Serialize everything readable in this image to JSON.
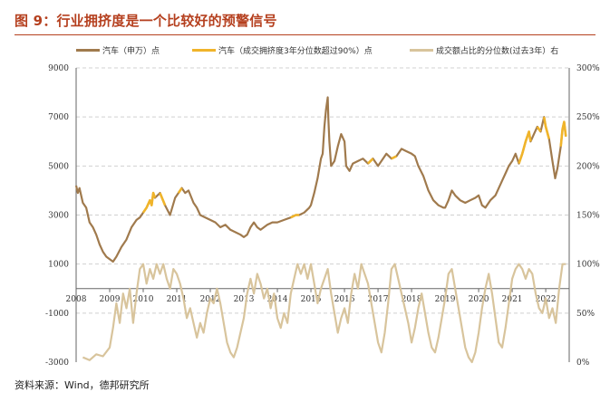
{
  "figure": {
    "title": "图 9：行业拥挤度是一个比较好的预警信号",
    "source": "资料来源：Wind，德邦研究所"
  },
  "chart_data": {
    "type": "line",
    "colors": {
      "price": "#a07a4d",
      "crowded": "#f0b42a",
      "share": "#d8c49c",
      "axis": "#666666",
      "grid": "#d0d0d0"
    },
    "series": [
      {
        "name": "汽车（申万）点",
        "axis": "left",
        "color": "#a07a4d"
      },
      {
        "name": "汽车（成交拥挤度3年分位数超过90%）点",
        "axis": "left",
        "color": "#f0b42a"
      },
      {
        "name": "成交额占比的分位数(过去3年）右",
        "axis": "right",
        "color": "#d8c49c"
      }
    ],
    "x_ticks": [
      "2008",
      "2009",
      "2010",
      "2011",
      "2012",
      "2013",
      "2014",
      "2015",
      "2016",
      "2017",
      "2018",
      "2019",
      "2020",
      "2021",
      "2022"
    ],
    "y_left": {
      "ticks": [
        "9000",
        "7000",
        "5000",
        "3000",
        "1000",
        "-1000",
        "-3000"
      ],
      "ylim": [
        -3000,
        9000
      ]
    },
    "y_right": {
      "ticks": [
        "300%",
        "250%",
        "200%",
        "150%",
        "100%",
        "50%",
        "0%"
      ],
      "ylim": [
        0,
        3
      ]
    },
    "price_points": [
      [
        2008.0,
        4200
      ],
      [
        2008.05,
        3900
      ],
      [
        2008.1,
        4100
      ],
      [
        2008.2,
        3500
      ],
      [
        2008.3,
        3300
      ],
      [
        2008.4,
        2700
      ],
      [
        2008.5,
        2500
      ],
      [
        2008.6,
        2200
      ],
      [
        2008.7,
        1800
      ],
      [
        2008.8,
        1500
      ],
      [
        2008.9,
        1300
      ],
      [
        2009.0,
        1200
      ],
      [
        2009.1,
        1100
      ],
      [
        2009.2,
        1300
      ],
      [
        2009.35,
        1700
      ],
      [
        2009.5,
        2000
      ],
      [
        2009.65,
        2500
      ],
      [
        2009.8,
        2800
      ],
      [
        2009.9,
        2900
      ],
      [
        2010.0,
        3100
      ],
      [
        2010.1,
        3300
      ],
      [
        2010.2,
        3600
      ],
      [
        2010.25,
        3400
      ],
      [
        2010.3,
        3900
      ],
      [
        2010.35,
        3700
      ],
      [
        2010.5,
        3900
      ],
      [
        2010.65,
        3400
      ],
      [
        2010.8,
        3000
      ],
      [
        2010.95,
        3700
      ],
      [
        2011.05,
        3900
      ],
      [
        2011.15,
        4100
      ],
      [
        2011.25,
        3900
      ],
      [
        2011.35,
        4000
      ],
      [
        2011.5,
        3500
      ],
      [
        2011.6,
        3300
      ],
      [
        2011.7,
        3000
      ],
      [
        2011.85,
        2900
      ],
      [
        2012.0,
        2800
      ],
      [
        2012.15,
        2700
      ],
      [
        2012.3,
        2500
      ],
      [
        2012.45,
        2600
      ],
      [
        2012.6,
        2400
      ],
      [
        2012.75,
        2300
      ],
      [
        2012.9,
        2200
      ],
      [
        2013.0,
        2100
      ],
      [
        2013.1,
        2200
      ],
      [
        2013.2,
        2500
      ],
      [
        2013.3,
        2700
      ],
      [
        2013.4,
        2500
      ],
      [
        2013.5,
        2400
      ],
      [
        2013.7,
        2600
      ],
      [
        2013.85,
        2700
      ],
      [
        2014.0,
        2700
      ],
      [
        2014.2,
        2800
      ],
      [
        2014.4,
        2900
      ],
      [
        2014.55,
        3000
      ],
      [
        2014.65,
        3000
      ],
      [
        2014.8,
        3100
      ],
      [
        2014.95,
        3300
      ],
      [
        2015.0,
        3400
      ],
      [
        2015.1,
        3900
      ],
      [
        2015.2,
        4500
      ],
      [
        2015.3,
        5300
      ],
      [
        2015.35,
        5500
      ],
      [
        2015.4,
        6600
      ],
      [
        2015.45,
        7300
      ],
      [
        2015.5,
        7800
      ],
      [
        2015.52,
        6900
      ],
      [
        2015.55,
        6000
      ],
      [
        2015.6,
        5000
      ],
      [
        2015.7,
        5200
      ],
      [
        2015.8,
        5800
      ],
      [
        2015.9,
        6300
      ],
      [
        2016.0,
        6000
      ],
      [
        2016.05,
        5000
      ],
      [
        2016.15,
        4800
      ],
      [
        2016.25,
        5100
      ],
      [
        2016.4,
        5200
      ],
      [
        2016.55,
        5300
      ],
      [
        2016.7,
        5100
      ],
      [
        2016.85,
        5300
      ],
      [
        2017.0,
        5000
      ],
      [
        2017.1,
        5200
      ],
      [
        2017.25,
        5500
      ],
      [
        2017.4,
        5300
      ],
      [
        2017.55,
        5400
      ],
      [
        2017.7,
        5700
      ],
      [
        2017.85,
        5600
      ],
      [
        2018.0,
        5500
      ],
      [
        2018.1,
        5400
      ],
      [
        2018.2,
        5000
      ],
      [
        2018.35,
        4600
      ],
      [
        2018.5,
        4000
      ],
      [
        2018.65,
        3600
      ],
      [
        2018.8,
        3400
      ],
      [
        2018.95,
        3300
      ],
      [
        2019.0,
        3300
      ],
      [
        2019.1,
        3600
      ],
      [
        2019.2,
        4000
      ],
      [
        2019.3,
        3800
      ],
      [
        2019.45,
        3600
      ],
      [
        2019.6,
        3500
      ],
      [
        2019.75,
        3600
      ],
      [
        2019.9,
        3700
      ],
      [
        2020.0,
        3800
      ],
      [
        2020.1,
        3400
      ],
      [
        2020.2,
        3300
      ],
      [
        2020.35,
        3600
      ],
      [
        2020.5,
        3800
      ],
      [
        2020.6,
        4100
      ],
      [
        2020.7,
        4400
      ],
      [
        2020.8,
        4700
      ],
      [
        2020.9,
        5000
      ],
      [
        2021.0,
        5200
      ],
      [
        2021.1,
        5500
      ],
      [
        2021.2,
        5100
      ],
      [
        2021.3,
        5500
      ],
      [
        2021.4,
        6000
      ],
      [
        2021.5,
        6400
      ],
      [
        2021.55,
        6000
      ],
      [
        2021.65,
        6300
      ],
      [
        2021.75,
        6600
      ],
      [
        2021.85,
        6400
      ],
      [
        2021.95,
        7000
      ],
      [
        2022.0,
        6600
      ],
      [
        2022.1,
        6100
      ],
      [
        2022.2,
        5200
      ],
      [
        2022.28,
        4500
      ],
      [
        2022.35,
        4900
      ],
      [
        2022.45,
        5800
      ],
      [
        2022.5,
        6500
      ],
      [
        2022.55,
        6800
      ],
      [
        2022.6,
        6200
      ]
    ],
    "crowded_segments": [
      [
        2010.0,
        2010.35
      ],
      [
        2010.5,
        2010.65
      ],
      [
        2011.05,
        2011.2
      ],
      [
        2013.45,
        2013.6
      ],
      [
        2014.3,
        2014.65
      ],
      [
        2016.6,
        2016.9
      ],
      [
        2017.4,
        2017.65
      ],
      [
        2021.2,
        2021.55
      ],
      [
        2021.75,
        2021.9
      ],
      [
        2021.95,
        2022.1
      ],
      [
        2022.45,
        2022.6
      ]
    ],
    "share_points": [
      [
        2008.2,
        5
      ],
      [
        2008.4,
        2
      ],
      [
        2008.6,
        8
      ],
      [
        2008.8,
        6
      ],
      [
        2009.0,
        15
      ],
      [
        2009.1,
        35
      ],
      [
        2009.2,
        60
      ],
      [
        2009.3,
        40
      ],
      [
        2009.4,
        70
      ],
      [
        2009.5,
        55
      ],
      [
        2009.6,
        75
      ],
      [
        2009.7,
        40
      ],
      [
        2009.8,
        70
      ],
      [
        2009.9,
        95
      ],
      [
        2010.0,
        100
      ],
      [
        2010.1,
        80
      ],
      [
        2010.2,
        95
      ],
      [
        2010.3,
        85
      ],
      [
        2010.4,
        100
      ],
      [
        2010.5,
        90
      ],
      [
        2010.6,
        100
      ],
      [
        2010.7,
        85
      ],
      [
        2010.8,
        75
      ],
      [
        2010.9,
        95
      ],
      [
        2011.0,
        90
      ],
      [
        2011.1,
        80
      ],
      [
        2011.2,
        65
      ],
      [
        2011.3,
        45
      ],
      [
        2011.4,
        55
      ],
      [
        2011.5,
        40
      ],
      [
        2011.6,
        25
      ],
      [
        2011.7,
        40
      ],
      [
        2011.8,
        30
      ],
      [
        2011.9,
        50
      ],
      [
        2012.0,
        65
      ],
      [
        2012.1,
        60
      ],
      [
        2012.2,
        75
      ],
      [
        2012.3,
        60
      ],
      [
        2012.4,
        40
      ],
      [
        2012.5,
        20
      ],
      [
        2012.6,
        10
      ],
      [
        2012.7,
        5
      ],
      [
        2012.8,
        15
      ],
      [
        2012.9,
        30
      ],
      [
        2013.0,
        45
      ],
      [
        2013.1,
        70
      ],
      [
        2013.2,
        85
      ],
      [
        2013.3,
        70
      ],
      [
        2013.4,
        90
      ],
      [
        2013.5,
        80
      ],
      [
        2013.6,
        65
      ],
      [
        2013.7,
        75
      ],
      [
        2013.8,
        55
      ],
      [
        2013.9,
        70
      ],
      [
        2014.0,
        45
      ],
      [
        2014.1,
        35
      ],
      [
        2014.2,
        50
      ],
      [
        2014.3,
        40
      ],
      [
        2014.4,
        70
      ],
      [
        2014.5,
        85
      ],
      [
        2014.6,
        100
      ],
      [
        2014.7,
        90
      ],
      [
        2014.8,
        100
      ],
      [
        2014.9,
        85
      ],
      [
        2015.0,
        100
      ],
      [
        2015.1,
        80
      ],
      [
        2015.2,
        60
      ],
      [
        2015.3,
        75
      ],
      [
        2015.4,
        85
      ],
      [
        2015.5,
        95
      ],
      [
        2015.6,
        70
      ],
      [
        2015.7,
        50
      ],
      [
        2015.8,
        30
      ],
      [
        2015.9,
        45
      ],
      [
        2016.0,
        55
      ],
      [
        2016.1,
        40
      ],
      [
        2016.2,
        70
      ],
      [
        2016.3,
        90
      ],
      [
        2016.4,
        75
      ],
      [
        2016.5,
        100
      ],
      [
        2016.6,
        90
      ],
      [
        2016.7,
        80
      ],
      [
        2016.8,
        60
      ],
      [
        2016.9,
        40
      ],
      [
        2017.0,
        20
      ],
      [
        2017.1,
        10
      ],
      [
        2017.2,
        30
      ],
      [
        2017.3,
        60
      ],
      [
        2017.4,
        95
      ],
      [
        2017.5,
        100
      ],
      [
        2017.6,
        85
      ],
      [
        2017.7,
        70
      ],
      [
        2017.8,
        55
      ],
      [
        2017.9,
        40
      ],
      [
        2018.0,
        20
      ],
      [
        2018.1,
        35
      ],
      [
        2018.2,
        55
      ],
      [
        2018.3,
        70
      ],
      [
        2018.4,
        50
      ],
      [
        2018.5,
        30
      ],
      [
        2018.6,
        15
      ],
      [
        2018.7,
        10
      ],
      [
        2018.8,
        25
      ],
      [
        2018.9,
        45
      ],
      [
        2019.0,
        65
      ],
      [
        2019.1,
        90
      ],
      [
        2019.2,
        95
      ],
      [
        2019.3,
        75
      ],
      [
        2019.4,
        55
      ],
      [
        2019.5,
        35
      ],
      [
        2019.6,
        15
      ],
      [
        2019.7,
        5
      ],
      [
        2019.8,
        0
      ],
      [
        2019.9,
        10
      ],
      [
        2020.0,
        30
      ],
      [
        2020.1,
        55
      ],
      [
        2020.2,
        75
      ],
      [
        2020.3,
        90
      ],
      [
        2020.4,
        70
      ],
      [
        2020.5,
        45
      ],
      [
        2020.6,
        20
      ],
      [
        2020.7,
        15
      ],
      [
        2020.8,
        35
      ],
      [
        2020.9,
        60
      ],
      [
        2021.0,
        85
      ],
      [
        2021.1,
        95
      ],
      [
        2021.2,
        100
      ],
      [
        2021.3,
        95
      ],
      [
        2021.4,
        85
      ],
      [
        2021.5,
        95
      ],
      [
        2021.6,
        90
      ],
      [
        2021.7,
        70
      ],
      [
        2021.8,
        55
      ],
      [
        2021.9,
        50
      ],
      [
        2022.0,
        65
      ],
      [
        2022.1,
        45
      ],
      [
        2022.2,
        55
      ],
      [
        2022.3,
        40
      ],
      [
        2022.4,
        75
      ],
      [
        2022.5,
        100
      ],
      [
        2022.6,
        100
      ]
    ]
  }
}
